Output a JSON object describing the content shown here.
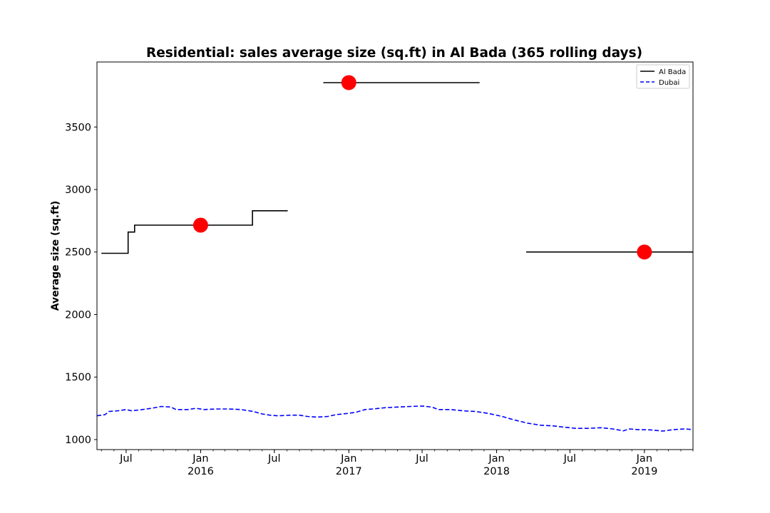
{
  "chart_data": {
    "type": "line",
    "title": "Residential: sales average size (sq.ft) in Al Bada (365 rolling days)",
    "xlabel": "",
    "ylabel": "Average size (sq.ft)",
    "xlim": [
      "2015-04-20",
      "2019-05-01"
    ],
    "ylim": [
      920,
      4020
    ],
    "yticks": [
      1000,
      1500,
      2000,
      2500,
      3000,
      3500
    ],
    "xticks": [
      {
        "date": "2015-07-01",
        "label": "Jul",
        "year": ""
      },
      {
        "date": "2016-01-01",
        "label": "Jan",
        "year": "2016"
      },
      {
        "date": "2016-07-01",
        "label": "Jul",
        "year": ""
      },
      {
        "date": "2017-01-01",
        "label": "Jan",
        "year": "2017"
      },
      {
        "date": "2017-07-01",
        "label": "Jul",
        "year": ""
      },
      {
        "date": "2018-01-01",
        "label": "Jan",
        "year": "2018"
      },
      {
        "date": "2018-07-01",
        "label": "Jul",
        "year": ""
      },
      {
        "date": "2019-01-01",
        "label": "Jan",
        "year": "2019"
      }
    ],
    "grid": false,
    "legend_position": "top-right",
    "series": [
      {
        "name": "Al Bada",
        "color": "#000000",
        "style": "solid",
        "segments": [
          [
            [
              "2015-05-01",
              2490
            ],
            [
              "2015-07-06",
              2490
            ],
            [
              "2015-07-06",
              2660
            ],
            [
              "2015-07-22",
              2660
            ],
            [
              "2015-07-22",
              2715
            ],
            [
              "2016-05-08",
              2715
            ],
            [
              "2016-05-08",
              2830
            ],
            [
              "2016-08-03",
              2830
            ]
          ],
          [
            [
              "2016-10-30",
              3855
            ],
            [
              "2017-11-20",
              3855
            ]
          ],
          [
            [
              "2018-03-15",
              2500
            ],
            [
              "2019-05-01",
              2500
            ]
          ]
        ]
      },
      {
        "name": "Dubai",
        "color": "#0000ff",
        "style": "dashed",
        "points": [
          [
            "2015-04-20",
            1190
          ],
          [
            "2015-05-10",
            1200
          ],
          [
            "2015-05-20",
            1225
          ],
          [
            "2015-06-10",
            1230
          ],
          [
            "2015-07-01",
            1240
          ],
          [
            "2015-07-15",
            1230
          ],
          [
            "2015-08-10",
            1240
          ],
          [
            "2015-09-01",
            1250
          ],
          [
            "2015-09-25",
            1265
          ],
          [
            "2015-10-20",
            1260
          ],
          [
            "2015-11-01",
            1240
          ],
          [
            "2015-12-01",
            1240
          ],
          [
            "2015-12-20",
            1250
          ],
          [
            "2016-01-10",
            1240
          ],
          [
            "2016-02-10",
            1245
          ],
          [
            "2016-03-10",
            1245
          ],
          [
            "2016-04-10",
            1240
          ],
          [
            "2016-05-10",
            1225
          ],
          [
            "2016-06-01",
            1205
          ],
          [
            "2016-06-20",
            1195
          ],
          [
            "2016-07-10",
            1190
          ],
          [
            "2016-08-10",
            1195
          ],
          [
            "2016-09-01",
            1195
          ],
          [
            "2016-09-20",
            1185
          ],
          [
            "2016-10-15",
            1180
          ],
          [
            "2016-11-10",
            1185
          ],
          [
            "2016-12-01",
            1200
          ],
          [
            "2017-01-01",
            1210
          ],
          [
            "2017-01-20",
            1220
          ],
          [
            "2017-02-10",
            1240
          ],
          [
            "2017-03-01",
            1245
          ],
          [
            "2017-04-01",
            1255
          ],
          [
            "2017-05-01",
            1260
          ],
          [
            "2017-06-01",
            1265
          ],
          [
            "2017-07-01",
            1268
          ],
          [
            "2017-07-25",
            1260
          ],
          [
            "2017-08-10",
            1240
          ],
          [
            "2017-09-10",
            1240
          ],
          [
            "2017-10-10",
            1230
          ],
          [
            "2017-11-10",
            1225
          ],
          [
            "2017-12-10",
            1210
          ],
          [
            "2018-01-15",
            1185
          ],
          [
            "2018-02-10",
            1160
          ],
          [
            "2018-03-01",
            1145
          ],
          [
            "2018-03-20",
            1130
          ],
          [
            "2018-04-20",
            1115
          ],
          [
            "2018-05-20",
            1110
          ],
          [
            "2018-06-15",
            1100
          ],
          [
            "2018-07-15",
            1090
          ],
          [
            "2018-08-15",
            1090
          ],
          [
            "2018-09-15",
            1095
          ],
          [
            "2018-10-15",
            1085
          ],
          [
            "2018-11-10",
            1070
          ],
          [
            "2018-11-25",
            1085
          ],
          [
            "2018-12-15",
            1080
          ],
          [
            "2019-01-15",
            1078
          ],
          [
            "2019-02-15",
            1068
          ],
          [
            "2019-03-15",
            1080
          ],
          [
            "2019-04-10",
            1085
          ],
          [
            "2019-05-01",
            1080
          ]
        ]
      }
    ],
    "markers": [
      {
        "date": "2016-01-01",
        "value": 2715,
        "color": "#ff0000"
      },
      {
        "date": "2017-01-01",
        "value": 3855,
        "color": "#ff0000"
      },
      {
        "date": "2019-01-01",
        "value": 2500,
        "color": "#ff0000"
      }
    ]
  }
}
